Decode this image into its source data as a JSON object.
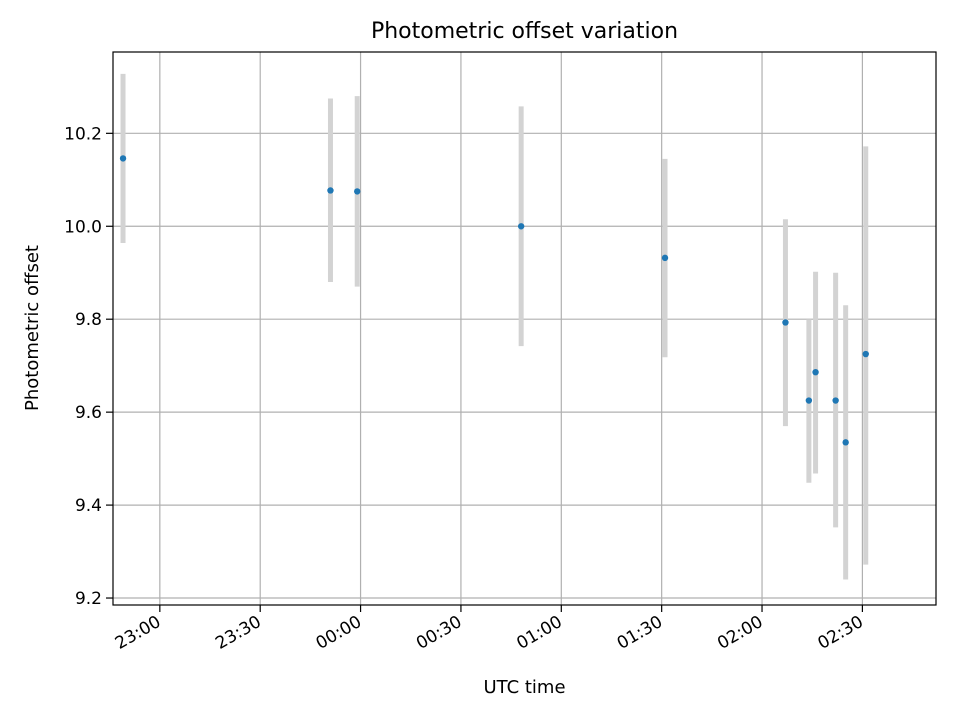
{
  "chart_data": {
    "type": "scatter",
    "title": "Photometric offset variation",
    "xlabel": "UTC time",
    "ylabel": "Photometric offset",
    "x_axis_kind": "time",
    "xlim": [
      "22:46",
      "02:52"
    ],
    "ylim": [
      9.185,
      10.375
    ],
    "grid": true,
    "xticks": [
      "23:00",
      "23:30",
      "00:00",
      "00:30",
      "01:00",
      "01:30",
      "02:00",
      "02:30"
    ],
    "yticks": [
      9.2,
      9.4,
      9.6,
      9.8,
      10.0,
      10.2
    ],
    "ytick_labels": [
      "9.2",
      "9.4",
      "9.6",
      "9.8",
      "10.0",
      "10.2"
    ],
    "points": [
      {
        "x": "22:49",
        "y": 10.146,
        "ylow": 9.964,
        "yhigh": 10.328
      },
      {
        "x": "23:51",
        "y": 10.077,
        "ylow": 9.88,
        "yhigh": 10.275
      },
      {
        "x": "23:59",
        "y": 10.075,
        "ylow": 9.87,
        "yhigh": 10.28
      },
      {
        "x": "00:48",
        "y": 10.0,
        "ylow": 9.742,
        "yhigh": 10.258
      },
      {
        "x": "01:31",
        "y": 9.932,
        "ylow": 9.718,
        "yhigh": 10.145
      },
      {
        "x": "02:07",
        "y": 9.793,
        "ylow": 9.57,
        "yhigh": 10.015
      },
      {
        "x": "02:14",
        "y": 9.625,
        "ylow": 9.448,
        "yhigh": 9.8
      },
      {
        "x": "02:16",
        "y": 9.686,
        "ylow": 9.468,
        "yhigh": 9.902
      },
      {
        "x": "02:22",
        "y": 9.625,
        "ylow": 9.352,
        "yhigh": 9.9
      },
      {
        "x": "02:25",
        "y": 9.535,
        "ylow": 9.24,
        "yhigh": 9.83
      },
      {
        "x": "02:31",
        "y": 9.725,
        "ylow": 9.272,
        "yhigh": 10.172
      }
    ],
    "colors": {
      "marker": "#1f77b4",
      "errorbar": "#d3d3d3",
      "grid": "#b0b0b0",
      "axis": "#000000"
    }
  }
}
